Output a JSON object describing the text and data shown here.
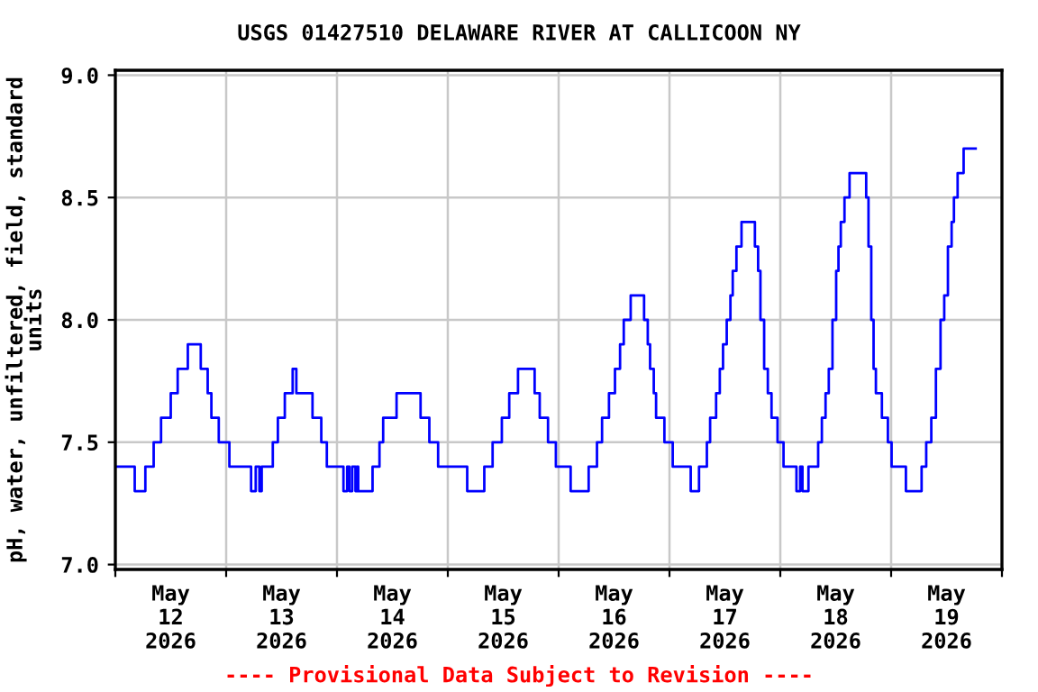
{
  "chart_data": {
    "type": "step",
    "title": "USGS 01427510 DELAWARE RIVER AT CALLICOON NY",
    "ylabel": "pH, water, unfiltered, field, standard\nunits",
    "annotations": [
      "---- Provisional Data Subject to Revision ----"
    ],
    "x": [
      "2026-05-12T00:24",
      "2026-05-12T04:12",
      "2026-05-12T06:30",
      "2026-05-12T08:18",
      "2026-05-12T09:54",
      "2026-05-12T12:00",
      "2026-05-12T13:30",
      "2026-05-12T15:42",
      "2026-05-12T18:30",
      "2026-05-12T20:00",
      "2026-05-12T20:48",
      "2026-05-12T22:24",
      "2026-05-13T00:42",
      "2026-05-13T05:24",
      "2026-05-13T06:24",
      "2026-05-13T07:12",
      "2026-05-13T07:42",
      "2026-05-13T10:06",
      "2026-05-13T11:12",
      "2026-05-13T12:42",
      "2026-05-13T14:24",
      "2026-05-13T15:12",
      "2026-05-13T18:42",
      "2026-05-13T20:36",
      "2026-05-13T21:48",
      "2026-05-14T01:24",
      "2026-05-14T02:12",
      "2026-05-14T02:42",
      "2026-05-14T03:18",
      "2026-05-14T04:00",
      "2026-05-14T04:18",
      "2026-05-14T04:36",
      "2026-05-14T07:42",
      "2026-05-14T09:12",
      "2026-05-14T10:00",
      "2026-05-14T12:54",
      "2026-05-14T18:06",
      "2026-05-14T20:00",
      "2026-05-14T21:54",
      "2026-05-15T04:12",
      "2026-05-15T07:54",
      "2026-05-15T09:42",
      "2026-05-15T11:42",
      "2026-05-15T13:18",
      "2026-05-15T15:12",
      "2026-05-15T18:48",
      "2026-05-15T19:54",
      "2026-05-15T21:42",
      "2026-05-15T23:24",
      "2026-05-16T02:36",
      "2026-05-16T06:30",
      "2026-05-16T08:18",
      "2026-05-16T09:24",
      "2026-05-16T10:54",
      "2026-05-16T12:12",
      "2026-05-16T13:18",
      "2026-05-16T14:06",
      "2026-05-16T15:36",
      "2026-05-16T18:30",
      "2026-05-16T19:18",
      "2026-05-16T19:48",
      "2026-05-16T20:36",
      "2026-05-16T21:06",
      "2026-05-16T22:54",
      "2026-05-17T00:42",
      "2026-05-17T04:36",
      "2026-05-17T06:24",
      "2026-05-17T08:06",
      "2026-05-17T08:48",
      "2026-05-17T10:06",
      "2026-05-17T10:54",
      "2026-05-17T11:36",
      "2026-05-17T12:24",
      "2026-05-17T13:12",
      "2026-05-17T13:42",
      "2026-05-17T14:30",
      "2026-05-17T15:36",
      "2026-05-17T18:30",
      "2026-05-17T19:12",
      "2026-05-17T19:42",
      "2026-05-17T20:30",
      "2026-05-17T21:18",
      "2026-05-17T22:06",
      "2026-05-17T23:24",
      "2026-05-18T00:42",
      "2026-05-18T03:30",
      "2026-05-18T04:18",
      "2026-05-18T04:48",
      "2026-05-18T06:06",
      "2026-05-18T08:12",
      "2026-05-18T09:00",
      "2026-05-18T09:48",
      "2026-05-18T10:30",
      "2026-05-18T11:18",
      "2026-05-18T12:06",
      "2026-05-18T12:36",
      "2026-05-18T13:06",
      "2026-05-18T13:54",
      "2026-05-18T15:00",
      "2026-05-18T18:36",
      "2026-05-18T19:06",
      "2026-05-18T19:42",
      "2026-05-18T20:12",
      "2026-05-18T20:42",
      "2026-05-18T22:00",
      "2026-05-18T23:18",
      "2026-05-19T00:06",
      "2026-05-19T03:12",
      "2026-05-19T06:36",
      "2026-05-19T07:36",
      "2026-05-19T08:42",
      "2026-05-19T09:42",
      "2026-05-19T10:42",
      "2026-05-19T11:30",
      "2026-05-19T12:18",
      "2026-05-19T13:06",
      "2026-05-19T13:36",
      "2026-05-19T14:24",
      "2026-05-19T15:42",
      "2026-05-19T18:18"
    ],
    "series": [
      {
        "color": "#0000ff",
        "values": [
          7.4,
          7.3,
          7.4,
          7.5,
          7.6,
          7.7,
          7.8,
          7.9,
          7.8,
          7.7,
          7.6,
          7.5,
          7.4,
          7.3,
          7.4,
          7.3,
          7.4,
          7.5,
          7.6,
          7.7,
          7.8,
          7.7,
          7.6,
          7.5,
          7.4,
          7.3,
          7.4,
          7.3,
          7.4,
          7.3,
          7.4,
          7.3,
          7.4,
          7.5,
          7.6,
          7.7,
          7.6,
          7.5,
          7.4,
          7.3,
          7.4,
          7.5,
          7.6,
          7.7,
          7.8,
          7.7,
          7.6,
          7.5,
          7.4,
          7.3,
          7.4,
          7.5,
          7.6,
          7.7,
          7.8,
          7.9,
          8.0,
          8.1,
          8.0,
          7.9,
          7.8,
          7.7,
          7.6,
          7.5,
          7.4,
          7.3,
          7.4,
          7.5,
          7.6,
          7.7,
          7.8,
          7.9,
          8.0,
          8.1,
          8.2,
          8.3,
          8.4,
          8.3,
          8.2,
          8.0,
          7.8,
          7.7,
          7.6,
          7.5,
          7.4,
          7.3,
          7.4,
          7.3,
          7.4,
          7.5,
          7.6,
          7.7,
          7.8,
          8.0,
          8.2,
          8.3,
          8.4,
          8.5,
          8.6,
          8.5,
          8.3,
          8.0,
          7.8,
          7.7,
          7.6,
          7.5,
          7.4,
          7.3,
          7.4,
          7.5,
          7.6,
          7.8,
          8.0,
          8.1,
          8.3,
          8.4,
          8.5,
          8.6,
          8.7,
          8.7
        ]
      }
    ],
    "xlim": [
      "2026-05-12T00:00",
      "2026-05-20T00:00"
    ],
    "xticks": [
      {
        "value": "2026-05-12T00:00",
        "label": null
      },
      {
        "value": "2026-05-12T12:00",
        "label": "May\n12\n2026"
      },
      {
        "value": "2026-05-13T00:00",
        "label": null
      },
      {
        "value": "2026-05-13T12:00",
        "label": "May\n13\n2026"
      },
      {
        "value": "2026-05-14T00:00",
        "label": null
      },
      {
        "value": "2026-05-14T12:00",
        "label": "May\n14\n2026"
      },
      {
        "value": "2026-05-15T00:00",
        "label": null
      },
      {
        "value": "2026-05-15T12:00",
        "label": "May\n15\n2026"
      },
      {
        "value": "2026-05-16T00:00",
        "label": null
      },
      {
        "value": "2026-05-16T12:00",
        "label": "May\n16\n2026"
      },
      {
        "value": "2026-05-17T00:00",
        "label": null
      },
      {
        "value": "2026-05-17T12:00",
        "label": "May\n17\n2026"
      },
      {
        "value": "2026-05-18T00:00",
        "label": null
      },
      {
        "value": "2026-05-18T12:00",
        "label": "May\n18\n2026"
      },
      {
        "value": "2026-05-19T00:00",
        "label": null
      },
      {
        "value": "2026-05-19T12:00",
        "label": "May\n19\n2026"
      },
      {
        "value": "2026-05-20T00:00",
        "label": null
      }
    ],
    "ylim": [
      6.98,
      9.02
    ],
    "yticks": [
      {
        "value": 7.0,
        "label": "7.0"
      },
      {
        "value": 7.5,
        "label": "7.5"
      },
      {
        "value": 8.0,
        "label": "8.0"
      },
      {
        "value": 8.5,
        "label": "8.5"
      },
      {
        "value": 9.0,
        "label": "9.0"
      }
    ],
    "grid": true,
    "marker": "none",
    "line_style": "solid"
  }
}
